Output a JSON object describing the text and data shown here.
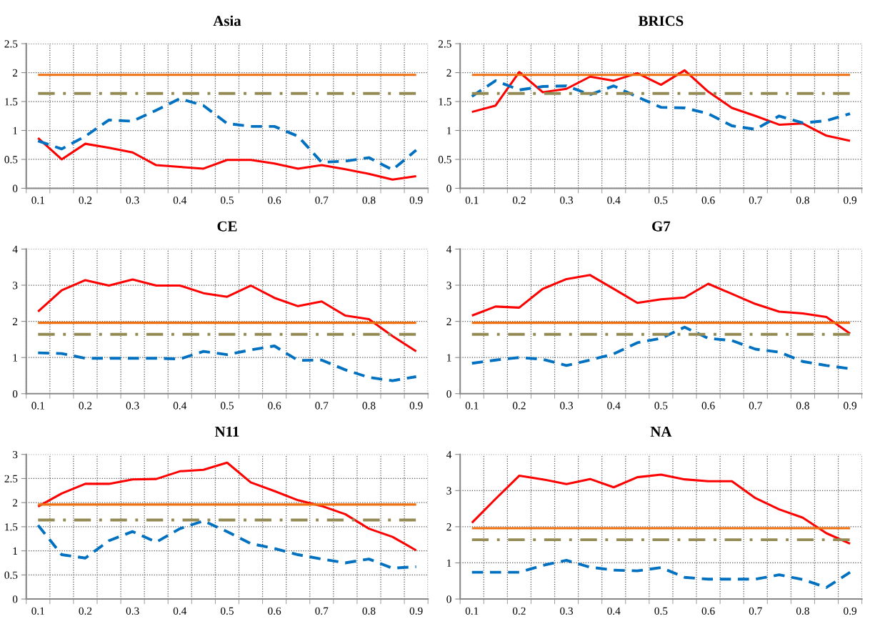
{
  "chart_data": [
    {
      "type": "line",
      "title": "Asia",
      "categories": [
        "0.1",
        null,
        "0.2",
        null,
        "0.3",
        null,
        "0.4",
        null,
        "0.5",
        null,
        "0.6",
        null,
        "0.7",
        null,
        "0.8",
        null,
        "0.9"
      ],
      "ylim": [
        0,
        2.5
      ],
      "yticks": [
        0,
        0.5,
        1,
        1.5,
        2,
        2.5
      ],
      "grid": true,
      "series": [
        {
          "color": "#ff0000",
          "line_style": "solid",
          "values": [
            0.87,
            0.5,
            0.77,
            0.7,
            0.62,
            0.4,
            0.37,
            0.34,
            0.49,
            0.49,
            0.43,
            0.34,
            0.4,
            0.33,
            0.25,
            0.15,
            0.21
          ]
        },
        {
          "color": "#0070c0",
          "line_style": "dashed",
          "values": [
            0.82,
            0.68,
            0.9,
            1.18,
            1.16,
            1.35,
            1.55,
            1.43,
            1.12,
            1.07,
            1.07,
            0.9,
            0.45,
            0.47,
            0.53,
            0.32,
            0.66
          ]
        },
        {
          "color": "#f07010",
          "line_style": "solid",
          "values": [
            1.96,
            1.96,
            1.96,
            1.96,
            1.96,
            1.96,
            1.96,
            1.96,
            1.96,
            1.96,
            1.96,
            1.96,
            1.96,
            1.96,
            1.96,
            1.96,
            1.96
          ]
        },
        {
          "color": "#948a54",
          "line_style": "dashdot",
          "values": [
            1.64,
            1.64,
            1.64,
            1.64,
            1.64,
            1.64,
            1.64,
            1.64,
            1.64,
            1.64,
            1.64,
            1.64,
            1.64,
            1.64,
            1.64,
            1.64,
            1.64
          ]
        }
      ]
    },
    {
      "type": "line",
      "title": "BRICS",
      "categories": [
        "0.1",
        null,
        "0.2",
        null,
        "0.3",
        null,
        "0.4",
        null,
        "0.5",
        null,
        "0.6",
        null,
        "0.7",
        null,
        "0.8",
        null,
        "0.9"
      ],
      "ylim": [
        0,
        2.5
      ],
      "yticks": [
        0,
        0.5,
        1,
        1.5,
        2,
        2.5
      ],
      "grid": true,
      "series": [
        {
          "color": "#ff0000",
          "line_style": "solid",
          "values": [
            1.32,
            1.43,
            2.01,
            1.66,
            1.72,
            1.93,
            1.86,
            1.99,
            1.79,
            2.04,
            1.67,
            1.39,
            1.25,
            1.1,
            1.12,
            0.91,
            0.82
          ]
        },
        {
          "color": "#0070c0",
          "line_style": "dashed",
          "values": [
            1.59,
            1.86,
            1.7,
            1.76,
            1.77,
            1.62,
            1.77,
            1.58,
            1.4,
            1.39,
            1.29,
            1.08,
            1.02,
            1.25,
            1.13,
            1.17,
            1.29
          ]
        },
        {
          "color": "#f07010",
          "line_style": "solid",
          "values": [
            1.96,
            1.96,
            1.96,
            1.96,
            1.96,
            1.96,
            1.96,
            1.96,
            1.96,
            1.96,
            1.96,
            1.96,
            1.96,
            1.96,
            1.96,
            1.96,
            1.96
          ]
        },
        {
          "color": "#948a54",
          "line_style": "dashdot",
          "values": [
            1.64,
            1.64,
            1.64,
            1.64,
            1.64,
            1.64,
            1.64,
            1.64,
            1.64,
            1.64,
            1.64,
            1.64,
            1.64,
            1.64,
            1.64,
            1.64,
            1.64
          ]
        }
      ]
    },
    {
      "type": "line",
      "title": "CE",
      "categories": [
        "0.1",
        null,
        "0.2",
        null,
        "0.3",
        null,
        "0.4",
        null,
        "0.5",
        null,
        "0.6",
        null,
        "0.7",
        null,
        "0.8",
        null,
        "0.9"
      ],
      "ylim": [
        0,
        4
      ],
      "yticks": [
        0,
        1,
        2,
        3,
        4
      ],
      "grid": true,
      "series": [
        {
          "color": "#ff0000",
          "line_style": "solid",
          "values": [
            2.27,
            2.86,
            3.14,
            2.99,
            3.16,
            2.99,
            2.99,
            2.78,
            2.68,
            2.99,
            2.65,
            2.42,
            2.55,
            2.16,
            2.06,
            1.59,
            1.17
          ]
        },
        {
          "color": "#0070c0",
          "line_style": "dashed",
          "values": [
            1.13,
            1.11,
            0.98,
            0.98,
            0.98,
            0.98,
            0.96,
            1.17,
            1.08,
            1.21,
            1.32,
            0.92,
            0.93,
            0.66,
            0.45,
            0.36,
            0.47
          ]
        },
        {
          "color": "#f07010",
          "line_style": "solid",
          "values": [
            1.96,
            1.96,
            1.96,
            1.96,
            1.96,
            1.96,
            1.96,
            1.96,
            1.96,
            1.96,
            1.96,
            1.96,
            1.96,
            1.96,
            1.96,
            1.96,
            1.96
          ]
        },
        {
          "color": "#948a54",
          "line_style": "dashdot",
          "values": [
            1.64,
            1.64,
            1.64,
            1.64,
            1.64,
            1.64,
            1.64,
            1.64,
            1.64,
            1.64,
            1.64,
            1.64,
            1.64,
            1.64,
            1.64,
            1.64,
            1.64
          ]
        }
      ]
    },
    {
      "type": "line",
      "title": "G7",
      "categories": [
        "0.1",
        null,
        "0.2",
        null,
        "0.3",
        null,
        "0.4",
        null,
        "0.5",
        null,
        "0.6",
        null,
        "0.7",
        null,
        "0.8",
        null,
        "0.9"
      ],
      "ylim": [
        0,
        4
      ],
      "yticks": [
        0,
        1,
        2,
        3,
        4
      ],
      "grid": true,
      "series": [
        {
          "color": "#ff0000",
          "line_style": "solid",
          "values": [
            2.16,
            2.41,
            2.38,
            2.9,
            3.17,
            3.28,
            2.9,
            2.51,
            2.61,
            2.66,
            3.04,
            2.76,
            2.48,
            2.27,
            2.22,
            2.12,
            1.66
          ]
        },
        {
          "color": "#0070c0",
          "line_style": "dashed",
          "values": [
            0.84,
            0.93,
            1.0,
            0.95,
            0.78,
            0.93,
            1.1,
            1.41,
            1.53,
            1.84,
            1.53,
            1.47,
            1.23,
            1.15,
            0.89,
            0.78,
            0.69
          ]
        },
        {
          "color": "#f07010",
          "line_style": "solid",
          "values": [
            1.96,
            1.96,
            1.96,
            1.96,
            1.96,
            1.96,
            1.96,
            1.96,
            1.96,
            1.96,
            1.96,
            1.96,
            1.96,
            1.96,
            1.96,
            1.96,
            1.96
          ]
        },
        {
          "color": "#948a54",
          "line_style": "dashdot",
          "values": [
            1.64,
            1.64,
            1.64,
            1.64,
            1.64,
            1.64,
            1.64,
            1.64,
            1.64,
            1.64,
            1.64,
            1.64,
            1.64,
            1.64,
            1.64,
            1.64,
            1.64
          ]
        }
      ]
    },
    {
      "type": "line",
      "title": "N11",
      "categories": [
        "0.1",
        null,
        "0.2",
        null,
        "0.3",
        null,
        "0.4",
        null,
        "0.5",
        null,
        "0.6",
        null,
        "0.7",
        null,
        "0.8",
        null,
        "0.9"
      ],
      "ylim": [
        0,
        3
      ],
      "yticks": [
        0,
        0.5,
        1,
        1.5,
        2,
        2.5,
        3
      ],
      "grid": true,
      "series": [
        {
          "color": "#ff0000",
          "line_style": "solid",
          "values": [
            1.92,
            2.19,
            2.39,
            2.39,
            2.48,
            2.49,
            2.65,
            2.68,
            2.83,
            2.42,
            2.24,
            2.05,
            1.93,
            1.76,
            1.46,
            1.29,
            1.01
          ]
        },
        {
          "color": "#0070c0",
          "line_style": "dashed",
          "values": [
            1.53,
            0.92,
            0.85,
            1.21,
            1.4,
            1.18,
            1.46,
            1.62,
            1.4,
            1.15,
            1.05,
            0.92,
            0.83,
            0.75,
            0.83,
            0.64,
            0.67
          ]
        },
        {
          "color": "#f07010",
          "line_style": "solid",
          "values": [
            1.96,
            1.96,
            1.96,
            1.96,
            1.96,
            1.96,
            1.96,
            1.96,
            1.96,
            1.96,
            1.96,
            1.96,
            1.96,
            1.96,
            1.96,
            1.96,
            1.96
          ]
        },
        {
          "color": "#948a54",
          "line_style": "dashdot",
          "values": [
            1.64,
            1.64,
            1.64,
            1.64,
            1.64,
            1.64,
            1.64,
            1.64,
            1.64,
            1.64,
            1.64,
            1.64,
            1.64,
            1.64,
            1.64,
            1.64,
            1.64
          ]
        }
      ]
    },
    {
      "type": "line",
      "title": "NA",
      "categories": [
        "0.1",
        null,
        "0.2",
        null,
        "0.3",
        null,
        "0.4",
        null,
        "0.5",
        null,
        "0.6",
        null,
        "0.7",
        null,
        "0.8",
        null,
        "0.9"
      ],
      "ylim": [
        0,
        4
      ],
      "yticks": [
        0,
        1,
        2,
        3,
        4
      ],
      "grid": true,
      "series": [
        {
          "color": "#ff0000",
          "line_style": "solid",
          "values": [
            2.11,
            2.77,
            3.41,
            3.31,
            3.18,
            3.32,
            3.09,
            3.37,
            3.44,
            3.31,
            3.26,
            3.26,
            2.79,
            2.48,
            2.25,
            1.82,
            1.53
          ]
        },
        {
          "color": "#0070c0",
          "line_style": "dashed",
          "values": [
            0.74,
            0.74,
            0.74,
            0.93,
            1.07,
            0.88,
            0.8,
            0.78,
            0.87,
            0.6,
            0.55,
            0.55,
            0.55,
            0.67,
            0.54,
            0.32,
            0.74
          ]
        },
        {
          "color": "#f07010",
          "line_style": "solid",
          "values": [
            1.96,
            1.96,
            1.96,
            1.96,
            1.96,
            1.96,
            1.96,
            1.96,
            1.96,
            1.96,
            1.96,
            1.96,
            1.96,
            1.96,
            1.96,
            1.96,
            1.96
          ]
        },
        {
          "color": "#948a54",
          "line_style": "dashdot",
          "values": [
            1.64,
            1.64,
            1.64,
            1.64,
            1.64,
            1.64,
            1.64,
            1.64,
            1.64,
            1.64,
            1.64,
            1.64,
            1.64,
            1.64,
            1.64,
            1.64,
            1.64
          ]
        }
      ]
    }
  ]
}
